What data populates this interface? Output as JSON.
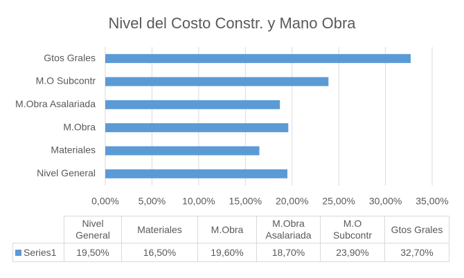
{
  "chart_data": {
    "type": "bar",
    "orientation": "horizontal",
    "title": "Nivel del Costo Constr. y Mano Obra",
    "categories": [
      "Nivel General",
      "Materiales",
      "M.Obra",
      "M.Obra Asalariada",
      "M.O Subcontr",
      "Gtos Grales"
    ],
    "series": [
      {
        "name": "Series1",
        "color": "#5b9bd5",
        "values": [
          19.5,
          16.5,
          19.6,
          18.7,
          23.9,
          32.7
        ],
        "value_labels": [
          "19,50%",
          "16,50%",
          "19,60%",
          "18,70%",
          "23,90%",
          "32,70%"
        ]
      }
    ],
    "xlim": [
      0,
      35
    ],
    "xticks": [
      {
        "value": 0,
        "label": "0,00%"
      },
      {
        "value": 5,
        "label": "5,00%"
      },
      {
        "value": 10,
        "label": "10,00%"
      },
      {
        "value": 15,
        "label": "15,00%"
      },
      {
        "value": 20,
        "label": "20,00%"
      },
      {
        "value": 25,
        "label": "25,00%"
      },
      {
        "value": 30,
        "label": "30,00%"
      },
      {
        "value": 35,
        "label": "35,00%"
      }
    ],
    "grid": true,
    "data_table": true
  }
}
